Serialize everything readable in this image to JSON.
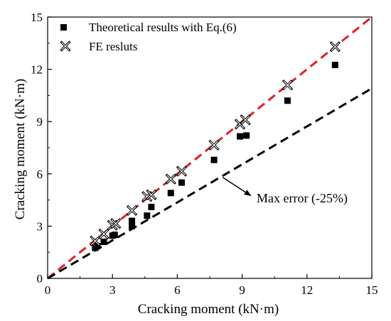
{
  "chart_data": {
    "type": "scatter",
    "xlabel": "Cracking moment (kN·m)",
    "ylabel": "Cracking moment (kN·m)",
    "xlim": [
      0,
      15
    ],
    "ylim": [
      0,
      15
    ],
    "xticks": [
      "0",
      "3",
      "6",
      "9",
      "12",
      "15"
    ],
    "yticks": [
      "0",
      "3",
      "6",
      "9",
      "12",
      "15"
    ],
    "grid": false,
    "legend_position": "top-left",
    "series": [
      {
        "name": "Theoretical results with Eq.(6)",
        "marker": "filled-square",
        "color": "#000000",
        "points": [
          [
            2.2,
            1.75
          ],
          [
            2.3,
            1.85
          ],
          [
            2.6,
            2.1
          ],
          [
            3.0,
            2.45
          ],
          [
            3.1,
            2.5
          ],
          [
            3.9,
            3.0
          ],
          [
            3.9,
            3.3
          ],
          [
            4.6,
            3.6
          ],
          [
            4.8,
            4.1
          ],
          [
            5.7,
            4.9
          ],
          [
            6.2,
            5.5
          ],
          [
            7.7,
            6.8
          ],
          [
            8.9,
            8.15
          ],
          [
            9.2,
            8.2
          ],
          [
            11.1,
            10.2
          ],
          [
            13.3,
            12.25
          ]
        ]
      },
      {
        "name": "FE resluts",
        "marker": "crossed-x",
        "color": "#000000",
        "points": [
          [
            2.2,
            2.15
          ],
          [
            2.6,
            2.55
          ],
          [
            3.0,
            3.05
          ],
          [
            3.15,
            3.15
          ],
          [
            3.9,
            3.9
          ],
          [
            4.6,
            4.7
          ],
          [
            4.8,
            4.8
          ],
          [
            5.7,
            5.7
          ],
          [
            6.2,
            6.15
          ],
          [
            7.7,
            7.65
          ],
          [
            8.9,
            8.85
          ],
          [
            9.15,
            9.1
          ],
          [
            11.1,
            11.1
          ],
          [
            13.3,
            13.3
          ]
        ]
      }
    ],
    "reference_lines": [
      {
        "kind": "y=x",
        "slope": 1.0,
        "color": "#e02020",
        "dash": "dashed"
      },
      {
        "kind": "max-error",
        "slope": 0.727,
        "color": "#000000",
        "dash": "dashed",
        "label": "Max error (-25%)"
      }
    ],
    "annotation": {
      "text": "Max error (-25%)",
      "arrow_from": [
        8.1,
        5.8
      ],
      "arrow_to": [
        9.4,
        4.75
      ]
    }
  }
}
